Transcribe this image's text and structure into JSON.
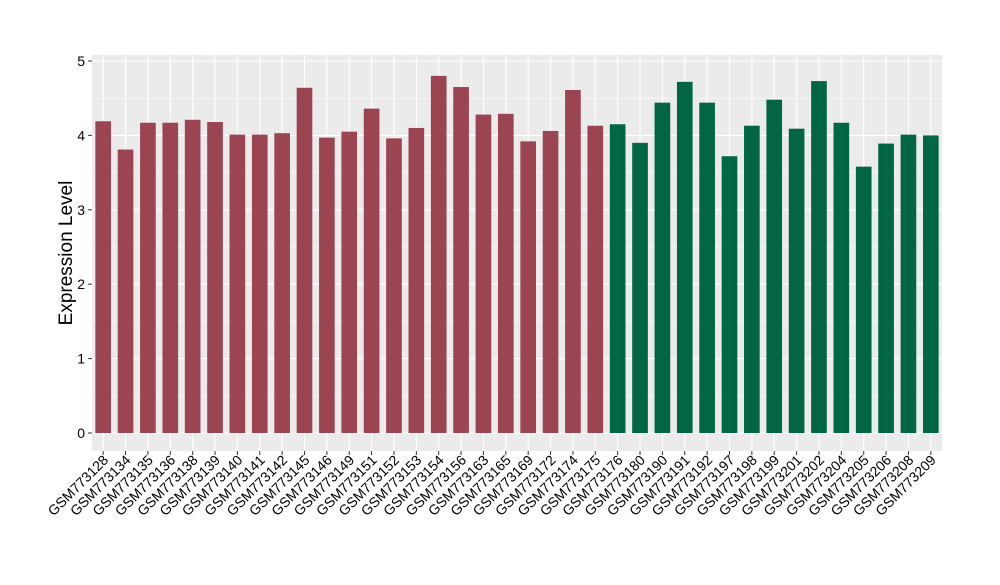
{
  "chart_data": {
    "type": "bar",
    "ylabel": "Expression Level",
    "xlabel": "",
    "ylim": [
      0,
      5
    ],
    "yticks": [
      0,
      1,
      2,
      3,
      4,
      5
    ],
    "grid": true,
    "legend": "none",
    "colors": {
      "group_a": "#9b4452",
      "group_b": "#006644",
      "panel_bg": "#ebebeb",
      "grid": "#ffffff",
      "axis_text": "#000000"
    },
    "categories": [
      "GSM773128",
      "GSM773134",
      "GSM773135",
      "GSM773136",
      "GSM773138",
      "GSM773139",
      "GSM773140",
      "GSM773141",
      "GSM773142",
      "GSM773145",
      "GSM773146",
      "GSM773149",
      "GSM773151",
      "GSM773152",
      "GSM773153",
      "GSM773154",
      "GSM773156",
      "GSM773163",
      "GSM773165",
      "GSM773169",
      "GSM773172",
      "GSM773174",
      "GSM773175",
      "GSM773176",
      "GSM773180",
      "GSM773190",
      "GSM773191",
      "GSM773192",
      "GSM773197",
      "GSM773198",
      "GSM773199",
      "GSM773201",
      "GSM773202",
      "GSM773204",
      "GSM773205",
      "GSM773206",
      "GSM773208",
      "GSM773209"
    ],
    "values": [
      4.19,
      3.81,
      4.17,
      4.17,
      4.21,
      4.18,
      4.01,
      4.01,
      4.03,
      4.64,
      3.97,
      4.05,
      4.36,
      3.96,
      4.1,
      4.8,
      4.65,
      4.28,
      4.29,
      3.92,
      4.06,
      4.61,
      4.13,
      4.15,
      3.9,
      4.44,
      4.72,
      4.44,
      3.72,
      4.13,
      4.48,
      4.09,
      4.73,
      4.17,
      3.58,
      3.89,
      4.01,
      4.0
    ],
    "groups": [
      "a",
      "a",
      "a",
      "a",
      "a",
      "a",
      "a",
      "a",
      "a",
      "a",
      "a",
      "a",
      "a",
      "a",
      "a",
      "a",
      "a",
      "a",
      "a",
      "a",
      "a",
      "a",
      "a",
      "b",
      "b",
      "b",
      "b",
      "b",
      "b",
      "b",
      "b",
      "b",
      "b",
      "b",
      "b",
      "b",
      "b",
      "b"
    ]
  }
}
